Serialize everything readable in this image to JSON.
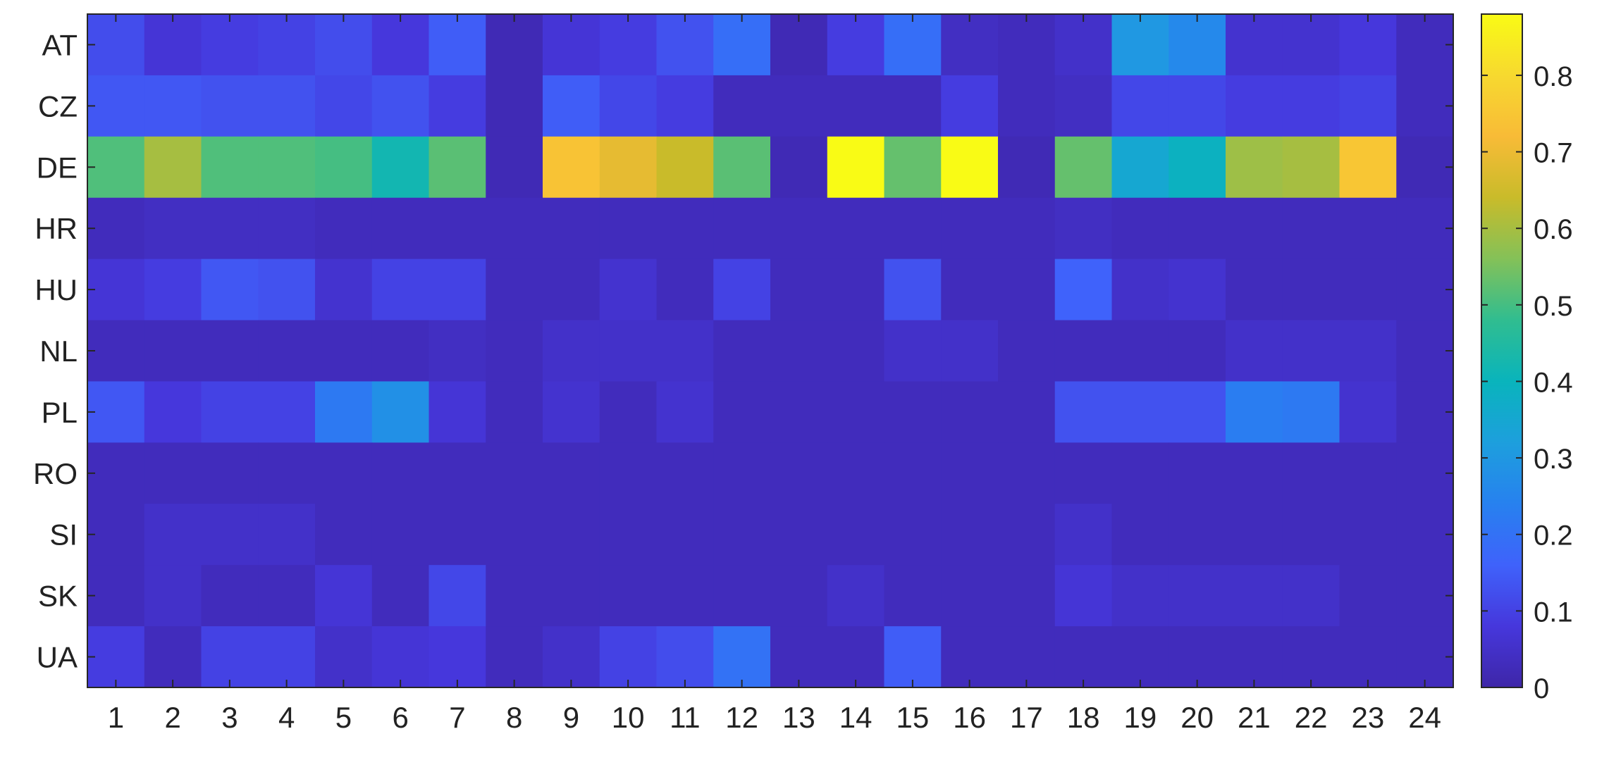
{
  "chart_data": {
    "type": "heatmap",
    "title": "",
    "xlabel": "",
    "ylabel": "",
    "x_categories": [
      "1",
      "2",
      "3",
      "4",
      "5",
      "6",
      "7",
      "8",
      "9",
      "10",
      "11",
      "12",
      "13",
      "14",
      "15",
      "16",
      "17",
      "18",
      "19",
      "20",
      "21",
      "22",
      "23",
      "24"
    ],
    "y_categories": [
      "AT",
      "CZ",
      "DE",
      "HR",
      "HU",
      "NL",
      "PL",
      "RO",
      "SI",
      "SK",
      "UA"
    ],
    "values": [
      [
        0.12,
        0.07,
        0.09,
        0.1,
        0.12,
        0.08,
        0.15,
        0.02,
        0.07,
        0.09,
        0.13,
        0.19,
        0.02,
        0.09,
        0.19,
        0.04,
        0.03,
        0.05,
        0.3,
        0.26,
        0.06,
        0.06,
        0.08,
        0.03
      ],
      [
        0.14,
        0.14,
        0.13,
        0.13,
        0.11,
        0.13,
        0.09,
        0.02,
        0.15,
        0.11,
        0.09,
        0.03,
        0.03,
        0.03,
        0.03,
        0.09,
        0.03,
        0.04,
        0.11,
        0.11,
        0.09,
        0.09,
        0.1,
        0.03
      ],
      [
        0.51,
        0.6,
        0.51,
        0.51,
        0.5,
        0.42,
        0.52,
        0.02,
        0.74,
        0.69,
        0.64,
        0.52,
        0.02,
        0.88,
        0.53,
        0.88,
        0.02,
        0.53,
        0.35,
        0.39,
        0.59,
        0.6,
        0.75,
        0.02
      ],
      [
        0.03,
        0.04,
        0.04,
        0.04,
        0.03,
        0.03,
        0.03,
        0.03,
        0.03,
        0.03,
        0.03,
        0.03,
        0.03,
        0.03,
        0.03,
        0.03,
        0.03,
        0.04,
        0.03,
        0.03,
        0.03,
        0.03,
        0.03,
        0.03
      ],
      [
        0.07,
        0.09,
        0.14,
        0.13,
        0.06,
        0.1,
        0.1,
        0.03,
        0.03,
        0.06,
        0.03,
        0.1,
        0.03,
        0.03,
        0.13,
        0.03,
        0.03,
        0.16,
        0.05,
        0.06,
        0.03,
        0.03,
        0.03,
        0.03
      ],
      [
        0.03,
        0.03,
        0.03,
        0.03,
        0.03,
        0.03,
        0.04,
        0.03,
        0.05,
        0.05,
        0.05,
        0.03,
        0.03,
        0.03,
        0.05,
        0.05,
        0.03,
        0.03,
        0.03,
        0.03,
        0.05,
        0.05,
        0.05,
        0.03
      ],
      [
        0.14,
        0.08,
        0.1,
        0.1,
        0.22,
        0.28,
        0.07,
        0.03,
        0.06,
        0.03,
        0.06,
        0.03,
        0.03,
        0.03,
        0.03,
        0.03,
        0.03,
        0.13,
        0.13,
        0.13,
        0.23,
        0.22,
        0.06,
        0.03
      ],
      [
        0.03,
        0.03,
        0.03,
        0.03,
        0.03,
        0.03,
        0.03,
        0.03,
        0.03,
        0.03,
        0.03,
        0.03,
        0.03,
        0.03,
        0.03,
        0.03,
        0.03,
        0.03,
        0.03,
        0.03,
        0.03,
        0.03,
        0.03,
        0.03
      ],
      [
        0.03,
        0.05,
        0.05,
        0.05,
        0.03,
        0.03,
        0.03,
        0.03,
        0.03,
        0.03,
        0.03,
        0.03,
        0.03,
        0.03,
        0.03,
        0.03,
        0.03,
        0.05,
        0.03,
        0.03,
        0.03,
        0.03,
        0.03,
        0.03
      ],
      [
        0.03,
        0.05,
        0.03,
        0.03,
        0.07,
        0.03,
        0.11,
        0.03,
        0.03,
        0.03,
        0.03,
        0.03,
        0.03,
        0.05,
        0.03,
        0.03,
        0.03,
        0.07,
        0.05,
        0.05,
        0.05,
        0.05,
        0.03,
        0.03
      ],
      [
        0.09,
        0.03,
        0.1,
        0.1,
        0.05,
        0.07,
        0.08,
        0.03,
        0.05,
        0.1,
        0.12,
        0.2,
        0.03,
        0.03,
        0.15,
        0.03,
        0.03,
        0.03,
        0.03,
        0.03,
        0.03,
        0.03,
        0.03,
        0.03
      ]
    ],
    "color_scale": {
      "colormap": "parula",
      "min": 0,
      "max": 0.88,
      "ticks": [
        0,
        0.1,
        0.2,
        0.3,
        0.4,
        0.5,
        0.6,
        0.7,
        0.8
      ],
      "tick_labels": [
        "0",
        "0.1",
        "0.2",
        "0.3",
        "0.4",
        "0.5",
        "0.6",
        "0.7",
        "0.8"
      ],
      "placement": "right"
    },
    "stops": [
      "#3e26a8",
      "#4637dc",
      "#3f62fb",
      "#2781ef",
      "#1d9fdd",
      "#09b4bc",
      "#30bd90",
      "#84c158",
      "#c9bb2a",
      "#f8bb37",
      "#f7d92f",
      "#f9fb15"
    ],
    "grid": false
  }
}
